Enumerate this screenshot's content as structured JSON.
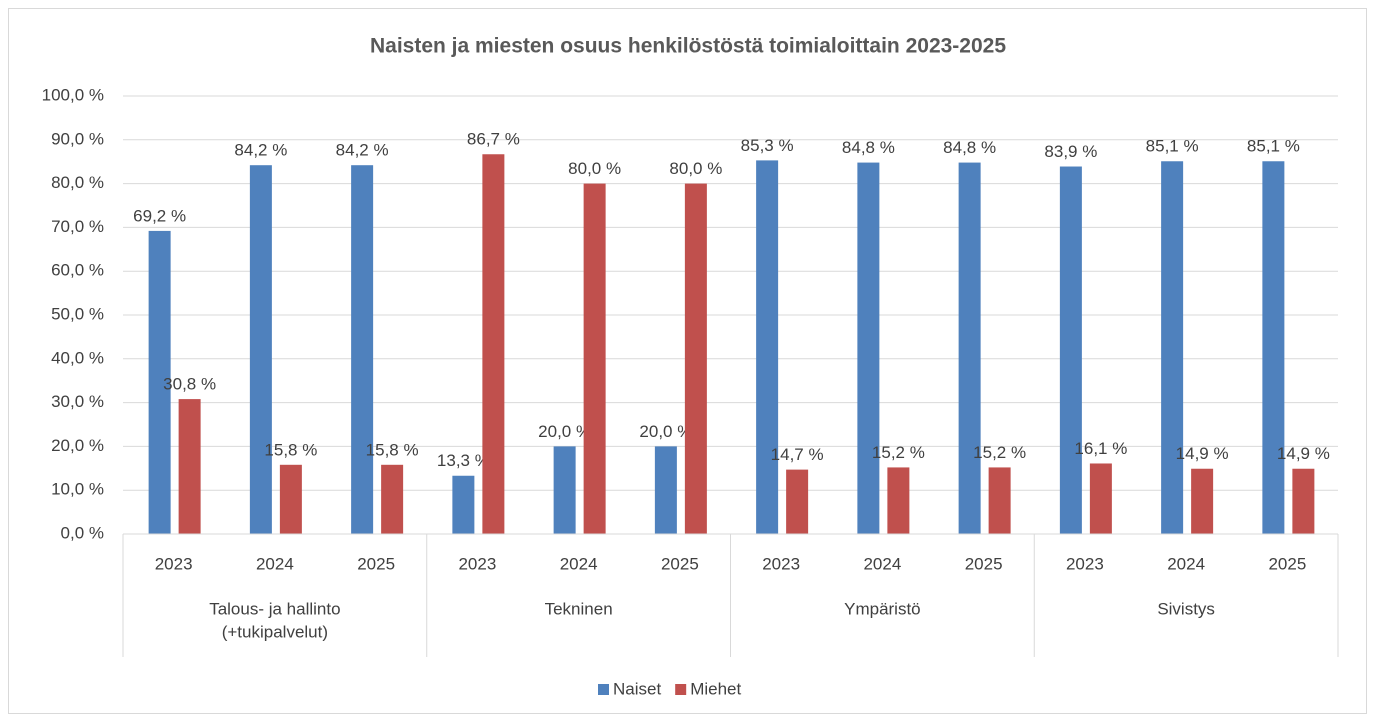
{
  "chart_data": {
    "type": "bar",
    "title": "Naisten ja miesten osuus henkilöstöstä toimialoittain 2023-2025",
    "groups": [
      {
        "label": [
          "Talous- ja hallinto",
          "(+tukipalvelut)"
        ],
        "categories": [
          "2023",
          "2024",
          "2025"
        ]
      },
      {
        "label": [
          "Tekninen"
        ],
        "categories": [
          "2023",
          "2024",
          "2025"
        ]
      },
      {
        "label": [
          "Ympäristö"
        ],
        "categories": [
          "2023",
          "2024",
          "2025"
        ]
      },
      {
        "label": [
          "Sivistys"
        ],
        "categories": [
          "2023",
          "2024",
          "2025"
        ]
      }
    ],
    "series": [
      {
        "name": "Naiset",
        "color": "#4f81bd",
        "values": [
          69.2,
          84.2,
          84.2,
          13.3,
          20.0,
          20.0,
          85.3,
          84.8,
          84.8,
          83.9,
          85.1,
          85.1
        ],
        "value_labels": [
          "69,2 %",
          "84,2 %",
          "84,2 %",
          "13,3 %",
          "20,0 %",
          "20,0 %",
          "85,3 %",
          "84,8 %",
          "84,8 %",
          "83,9 %",
          "85,1 %",
          "85,1 %"
        ]
      },
      {
        "name": "Miehet",
        "color": "#c0504d",
        "values": [
          30.8,
          15.8,
          15.8,
          86.7,
          80.0,
          80.0,
          14.7,
          15.2,
          15.2,
          16.1,
          14.9,
          14.9
        ],
        "value_labels": [
          "30,8 %",
          "15,8 %",
          "15,8 %",
          "86,7 %",
          "80,0 %",
          "80,0 %",
          "14,7 %",
          "15,2 %",
          "15,2 %",
          "16,1 %",
          "14,9 %",
          "14,9 %"
        ]
      }
    ],
    "ylim": [
      0,
      100
    ],
    "yticks": [
      {
        "value": 0,
        "label": "0,0 %"
      },
      {
        "value": 10,
        "label": "10,0 %"
      },
      {
        "value": 20,
        "label": "20,0 %"
      },
      {
        "value": 30,
        "label": "30,0 %"
      },
      {
        "value": 40,
        "label": "40,0 %"
      },
      {
        "value": 50,
        "label": "50,0 %"
      },
      {
        "value": 60,
        "label": "60,0 %"
      },
      {
        "value": 70,
        "label": "70,0 %"
      },
      {
        "value": 80,
        "label": "80,0 %"
      },
      {
        "value": 90,
        "label": "90,0 %"
      },
      {
        "value": 100,
        "label": "100,0 %"
      }
    ],
    "grid": true,
    "legend": "bottom"
  }
}
